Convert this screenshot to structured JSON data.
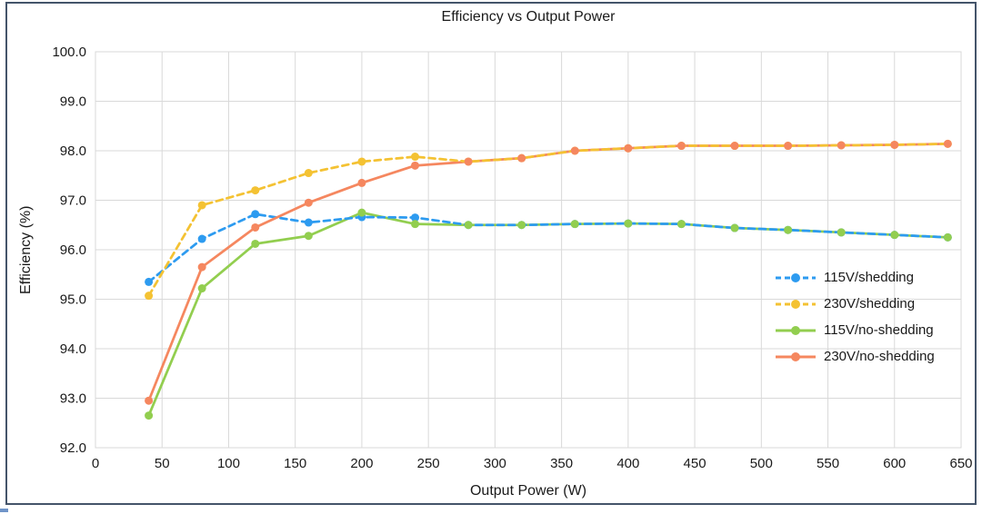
{
  "chart_data": {
    "type": "line",
    "title": "Efficiency vs Output Power",
    "xlabel": "Output Power (W)",
    "ylabel": "Efficiency (%)",
    "xlim": [
      0,
      650
    ],
    "ylim": [
      92.0,
      100.0
    ],
    "x_ticks": [
      0,
      50,
      100,
      150,
      200,
      250,
      300,
      350,
      400,
      450,
      500,
      550,
      600,
      650
    ],
    "y_ticks": [
      "92.0",
      "93.0",
      "94.0",
      "95.0",
      "96.0",
      "97.0",
      "98.0",
      "99.0",
      "100.0"
    ],
    "grid": true,
    "legend_position": "right-middle",
    "x": [
      40,
      80,
      120,
      160,
      200,
      240,
      280,
      320,
      360,
      400,
      440,
      480,
      520,
      560,
      600,
      640
    ],
    "series": [
      {
        "name": "115V/shedding",
        "color": "#2D9BF0",
        "dashed": true,
        "values": [
          95.35,
          96.22,
          96.72,
          96.55,
          96.66,
          96.65,
          96.5,
          96.5,
          96.52,
          96.53,
          96.52,
          96.44,
          96.4,
          96.35,
          96.3,
          96.25
        ]
      },
      {
        "name": "230V/shedding",
        "color": "#F4C233",
        "dashed": true,
        "values": [
          95.07,
          96.9,
          97.2,
          97.55,
          97.78,
          97.88,
          97.78,
          97.85,
          98.0,
          98.05,
          98.1,
          98.1,
          98.1,
          98.11,
          98.12,
          98.14
        ]
      },
      {
        "name": "115V/no-shedding",
        "color": "#92CE4F",
        "dashed": false,
        "values": [
          92.65,
          95.22,
          96.12,
          96.28,
          96.75,
          96.52,
          96.5,
          96.5,
          96.52,
          96.53,
          96.52,
          96.44,
          96.4,
          96.35,
          96.3,
          96.25
        ]
      },
      {
        "name": "230V/no-shedding",
        "color": "#F5875F",
        "dashed": false,
        "values": [
          92.95,
          95.65,
          96.45,
          96.95,
          97.35,
          97.7,
          97.78,
          97.85,
          98.0,
          98.05,
          98.1,
          98.1,
          98.1,
          98.11,
          98.12,
          98.14
        ]
      }
    ],
    "colors": {
      "grid": "#D9D9D9",
      "plot_border": "#D9D9D9",
      "frame_border": "#44546A",
      "text": "#1a1a1a",
      "background": "#ffffff"
    }
  }
}
